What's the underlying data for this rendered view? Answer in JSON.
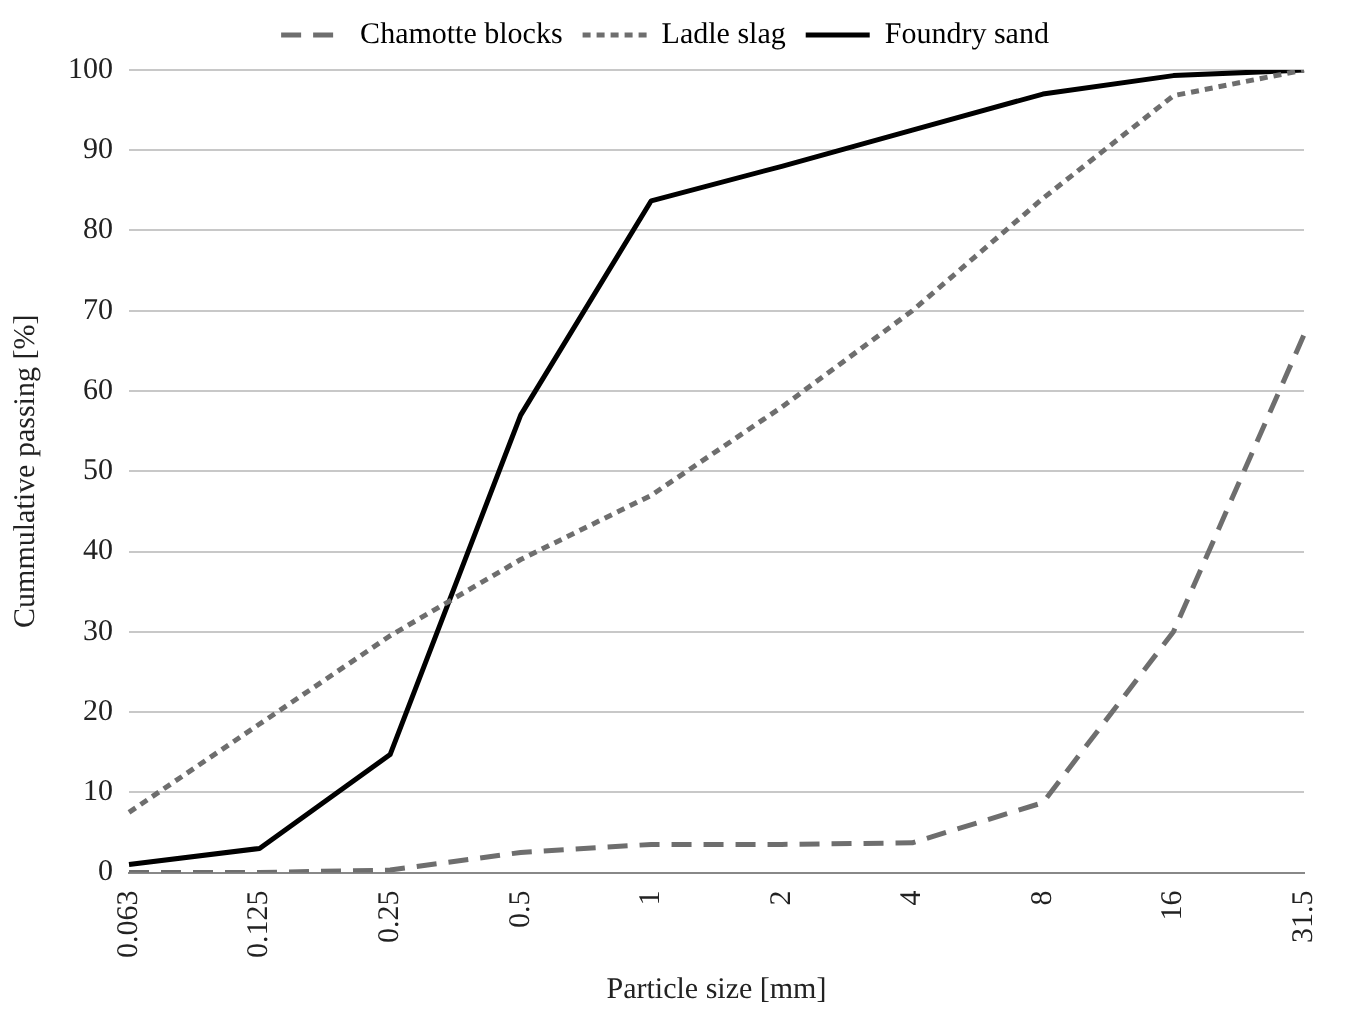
{
  "chart_data": {
    "type": "line",
    "xlabel": "Particle size [mm]",
    "ylabel": "Cummulative passing [%]",
    "categories": [
      "0.063",
      "0.125",
      "0.25",
      "0.5",
      "1",
      "2",
      "4",
      "8",
      "16",
      "31.5"
    ],
    "series": [
      {
        "name": "Chamotte blocks",
        "color": "#6e6e6e",
        "line_style": "dashed",
        "values": [
          0,
          0,
          0.3,
          2.5,
          3.5,
          3.5,
          3.7,
          8.7,
          30,
          67
        ]
      },
      {
        "name": "Ladle slag",
        "color": "#6e6e6e",
        "line_style": "dotted",
        "values": [
          7.5,
          18.5,
          29.5,
          39,
          47,
          58,
          70,
          84,
          96.8,
          100
        ]
      },
      {
        "name": "Foundry sand",
        "color": "#000000",
        "line_style": "solid",
        "values": [
          1,
          3,
          14.7,
          57,
          83.7,
          88,
          92.5,
          97,
          99.3,
          100
        ]
      }
    ],
    "ylim": [
      0,
      100
    ],
    "yticks": [
      0,
      10,
      20,
      30,
      40,
      50,
      60,
      70,
      80,
      90,
      100
    ],
    "grid": "y",
    "legend": "top",
    "marker": "none"
  }
}
